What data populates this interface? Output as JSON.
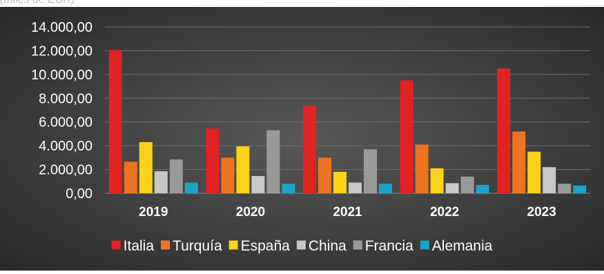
{
  "caption": "(miles de EUR)",
  "chart_data": {
    "type": "bar",
    "categories": [
      "2019",
      "2020",
      "2021",
      "2022",
      "2023"
    ],
    "series": [
      {
        "name": "Italia",
        "color": "#e32222",
        "values": [
          12050,
          5450,
          7350,
          9500,
          10500
        ]
      },
      {
        "name": "Turquía",
        "color": "#ee7421",
        "values": [
          2650,
          3000,
          3000,
          4100,
          5200
        ]
      },
      {
        "name": "España",
        "color": "#ffd21a",
        "values": [
          4300,
          3950,
          1800,
          2100,
          3500
        ]
      },
      {
        "name": "China",
        "color": "#c8c8c8",
        "values": [
          1850,
          1450,
          900,
          850,
          2200
        ]
      },
      {
        "name": "Francia",
        "color": "#9a9a9a",
        "values": [
          2850,
          5300,
          3700,
          1400,
          800
        ]
      },
      {
        "name": "Alemania",
        "color": "#1aa3c9",
        "values": [
          900,
          800,
          800,
          700,
          650
        ]
      }
    ],
    "yticks": [
      "0,00",
      "2.000,00",
      "4.000,00",
      "6.000,00",
      "8.000,00",
      "10.000,00",
      "12.000,00",
      "14.000,00"
    ],
    "ylim": [
      0,
      14000
    ],
    "grid": true,
    "legend": "bottom"
  }
}
